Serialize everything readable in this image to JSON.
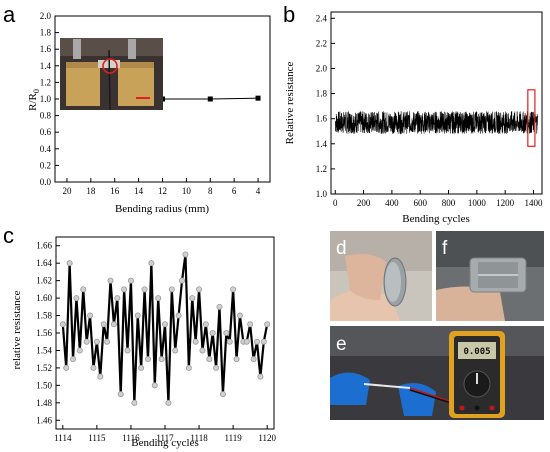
{
  "panels": {
    "a": "a",
    "b": "b",
    "c": "c",
    "d": "d",
    "e": "e",
    "f": "f"
  },
  "photos": {
    "inset_scale_bar_color": "#e02020",
    "inset_circle_color": "#e02020",
    "multimeter_display": "0.005"
  },
  "chart_data": [
    {
      "id": "a",
      "type": "line",
      "title": "",
      "xlabel": "Bending radius (mm)",
      "ylabel_main": "R/R",
      "ylabel_sub": "0",
      "x": [
        20,
        16,
        12,
        8,
        4
      ],
      "values": [
        1.0,
        1.0,
        1.0,
        1.0,
        1.01
      ],
      "xlim": [
        21,
        3
      ],
      "ylim": [
        0.0,
        2.0
      ],
      "xticks": [
        "20",
        "18",
        "16",
        "14",
        "12",
        "10",
        "8",
        "6",
        "4"
      ],
      "yticks": [
        "0.0",
        "0.2",
        "0.4",
        "0.6",
        "0.8",
        "1.0",
        "1.2",
        "1.4",
        "1.6",
        "1.8",
        "2.0"
      ],
      "marker": "square"
    },
    {
      "id": "b",
      "type": "line",
      "title": "",
      "xlabel": "Bending cycles",
      "ylabel": "Relative resistance",
      "xlim": [
        -30,
        1460
      ],
      "ylim": [
        1.0,
        2.45
      ],
      "xticks": [
        "0",
        "200",
        "400",
        "600",
        "800",
        "1000",
        "1200",
        "1400"
      ],
      "yticks": [
        "1.0",
        "1.2",
        "1.4",
        "1.6",
        "1.8",
        "2.0",
        "2.2",
        "2.4"
      ],
      "cycles": 1430,
      "band_min": 1.48,
      "band_max": 1.66,
      "band_mean": 1.57,
      "highlight": {
        "x_from": 1360,
        "x_to": 1410,
        "y_from": 1.38,
        "y_to": 1.83,
        "color": "#e02020"
      }
    },
    {
      "id": "c",
      "type": "line",
      "title": "",
      "xlabel": "Bending  cycles",
      "ylabel": "relative resistance",
      "xlim": [
        1113.8,
        1120.2
      ],
      "ylim": [
        1.45,
        1.67
      ],
      "xticks": [
        "1114",
        "1115",
        "1116",
        "1117",
        "1118",
        "1119",
        "1120"
      ],
      "yticks": [
        "1.46",
        "1.48",
        "1.50",
        "1.52",
        "1.54",
        "1.56",
        "1.58",
        "1.60",
        "1.62",
        "1.64",
        "1.66"
      ],
      "x": [
        1114.0,
        1114.1,
        1114.2,
        1114.3,
        1114.4,
        1114.5,
        1114.6,
        1114.7,
        1114.8,
        1114.9,
        1115.0,
        1115.1,
        1115.2,
        1115.3,
        1115.4,
        1115.5,
        1115.6,
        1115.7,
        1115.8,
        1115.9,
        1116.0,
        1116.1,
        1116.2,
        1116.3,
        1116.4,
        1116.5,
        1116.6,
        1116.7,
        1116.8,
        1116.9,
        1117.0,
        1117.1,
        1117.2,
        1117.3,
        1117.4,
        1117.5,
        1117.6,
        1117.7,
        1117.8,
        1117.9,
        1118.0,
        1118.1,
        1118.2,
        1118.3,
        1118.4,
        1118.5,
        1118.6,
        1118.7,
        1118.8,
        1118.9,
        1119.0,
        1119.1,
        1119.2,
        1119.3,
        1119.4,
        1119.5,
        1119.6,
        1119.7,
        1119.8,
        1119.9,
        1120.0
      ],
      "values": [
        1.57,
        1.52,
        1.64,
        1.53,
        1.6,
        1.54,
        1.61,
        1.55,
        1.58,
        1.52,
        1.55,
        1.51,
        1.57,
        1.55,
        1.62,
        1.57,
        1.6,
        1.49,
        1.61,
        1.54,
        1.62,
        1.48,
        1.58,
        1.52,
        1.61,
        1.53,
        1.64,
        1.5,
        1.6,
        1.53,
        1.57,
        1.48,
        1.61,
        1.54,
        1.58,
        1.62,
        1.65,
        1.52,
        1.6,
        1.55,
        1.61,
        1.54,
        1.57,
        1.53,
        1.56,
        1.52,
        1.59,
        1.49,
        1.56,
        1.55,
        1.61,
        1.53,
        1.58,
        1.55,
        1.55,
        1.57,
        1.53,
        1.55,
        1.51,
        1.55,
        1.57
      ],
      "line_color": "#000000",
      "marker_fill": "#d0d0d0",
      "marker_stroke": "#9a9a9a"
    }
  ]
}
